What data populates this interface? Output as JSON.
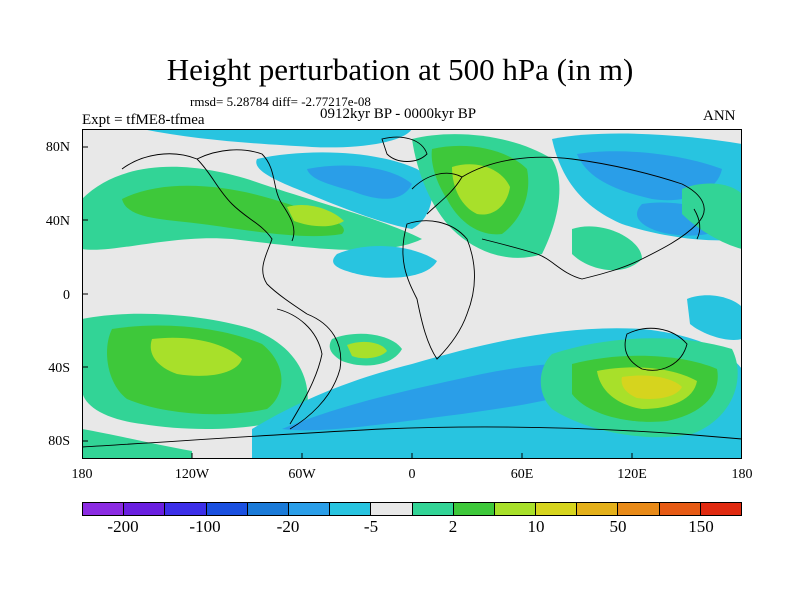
{
  "title": "Height perturbation at 500 hPa (in m)",
  "stats": "rmsd= 5.28784 diff= -2.77217e-08",
  "experiment": "Expt = tfME8-tfmea",
  "period": "0912kyr BP - 0000kyr BP",
  "season": "ANN",
  "latitude_labels": [
    "80N",
    "40N",
    "0",
    "40S",
    "80S"
  ],
  "longitude_labels": [
    "180",
    "120W",
    "60W",
    "0",
    "60E",
    "120E",
    "180"
  ],
  "colorbar": {
    "colors": [
      "#8b2be2",
      "#6a1fe0",
      "#3c2fe8",
      "#1a50e0",
      "#1a7ad8",
      "#2a9ee8",
      "#28c4e0",
      "#e8e8e8",
      "#32d496",
      "#3ec83a",
      "#a8e02a",
      "#d6d41e",
      "#e4b01a",
      "#e88a18",
      "#e65a14",
      "#e02a10"
    ],
    "labels": [
      "-200",
      "-100",
      "-20",
      "-5",
      "2",
      "10",
      "50",
      "150"
    ]
  },
  "field_colors": {
    "neutral": "#e8e8e8",
    "pos1": "#32d496",
    "pos2": "#3ec83a",
    "pos3": "#a8e02a",
    "pos4": "#d6d41e",
    "pos5": "#e4b01a",
    "pos_max": "#e65a14",
    "neg1": "#28c4e0",
    "neg2": "#2a9ee8",
    "neg3": "#1a7ad8"
  }
}
